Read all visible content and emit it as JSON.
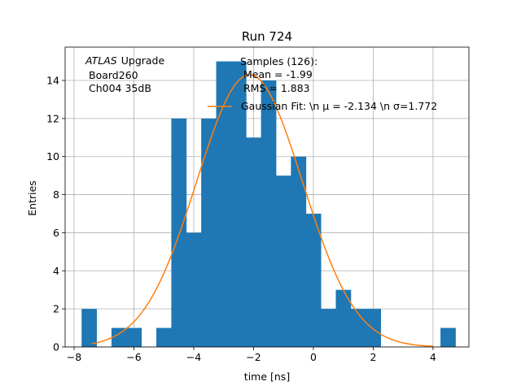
{
  "chart_data": {
    "type": "bar",
    "title": "Run 724",
    "xlabel": "time [ns]",
    "ylabel": "Entries",
    "xlim": [
      -8.3,
      5.2
    ],
    "ylim": [
      0,
      15.75
    ],
    "xticks": [
      -8,
      -6,
      -4,
      -2,
      0,
      2,
      4
    ],
    "xtick_labels": [
      "−8",
      "−6",
      "−4",
      "−2",
      "0",
      "2",
      "4"
    ],
    "yticks": [
      0,
      2,
      4,
      6,
      8,
      10,
      12,
      14
    ],
    "yticks_labels": [
      "0",
      "2",
      "4",
      "6",
      "8",
      "10",
      "12",
      "14"
    ],
    "grid": true,
    "bin_width": 0.5,
    "bars": [
      {
        "x0": -7.75,
        "count": 2
      },
      {
        "x0": -7.25,
        "count": 0
      },
      {
        "x0": -6.75,
        "count": 1
      },
      {
        "x0": -6.25,
        "count": 1
      },
      {
        "x0": -5.75,
        "count": 0
      },
      {
        "x0": -5.25,
        "count": 1
      },
      {
        "x0": -4.75,
        "count": 12
      },
      {
        "x0": -4.25,
        "count": 6
      },
      {
        "x0": -3.75,
        "count": 12
      },
      {
        "x0": -3.25,
        "count": 15
      },
      {
        "x0": -2.75,
        "count": 15
      },
      {
        "x0": -2.25,
        "count": 11
      },
      {
        "x0": -1.75,
        "count": 14
      },
      {
        "x0": -1.25,
        "count": 9
      },
      {
        "x0": -0.75,
        "count": 10
      },
      {
        "x0": -0.25,
        "count": 7
      },
      {
        "x0": 0.25,
        "count": 2
      },
      {
        "x0": 0.75,
        "count": 3
      },
      {
        "x0": 1.25,
        "count": 2
      },
      {
        "x0": 1.75,
        "count": 2
      },
      {
        "x0": 2.25,
        "count": 0
      },
      {
        "x0": 2.75,
        "count": 0
      },
      {
        "x0": 3.25,
        "count": 0
      },
      {
        "x0": 3.75,
        "count": 0
      },
      {
        "x0": 4.25,
        "count": 1
      }
    ],
    "gaussian_fit": {
      "mu": -2.134,
      "sigma": 1.772,
      "amplitude": 14.3,
      "x_range": [
        -7.4,
        4.0
      ]
    },
    "colors": {
      "bars": "#1f77b4",
      "fit": "#ff7f0e",
      "grid": "#b0b0b0"
    },
    "annotation_lines": [
      "Upgrade",
      "Board260",
      "Ch004 35dB"
    ],
    "annotation_italic": "ATLAS",
    "samples_lines": [
      "Samples (126):",
      "Mean = -1.99",
      "RMS = 1.883"
    ],
    "legend_label": "Gaussian Fit: \\n μ = -2.134 \\n σ=1.772"
  }
}
